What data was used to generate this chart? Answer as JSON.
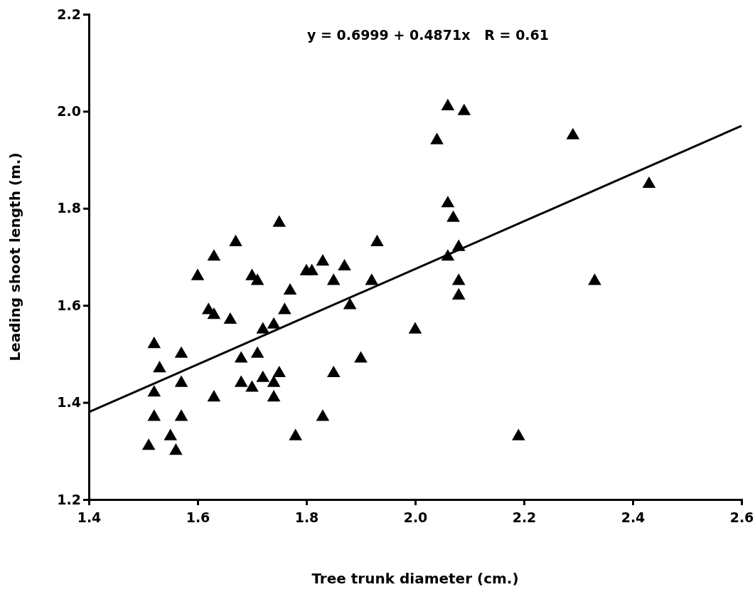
{
  "chart_data": {
    "type": "scatter",
    "xlabel": "Tree trunk diameter (cm.)",
    "ylabel": "Leading shoot length (m.)",
    "annotations": [
      "y = 0.6999 + 0.4871x   R = 0.61"
    ],
    "xlim": [
      1.4,
      2.6
    ],
    "ylim": [
      1.2,
      2.2
    ],
    "xticks": [
      1.4,
      1.6,
      1.8,
      {
        "value": 2,
        "label": "2.0"
      },
      2.2,
      2.4,
      2.6
    ],
    "yticks": [
      1.2,
      1.4,
      1.6,
      1.8,
      {
        "value": 2,
        "label": "2.0"
      },
      2.2
    ],
    "grid": false,
    "series": [
      {
        "marker": "triangle",
        "color": "#000000",
        "x": [
          1.51,
          1.52,
          1.52,
          1.52,
          1.53,
          1.55,
          1.56,
          1.57,
          1.57,
          1.57,
          1.6,
          1.62,
          1.63,
          1.63,
          1.63,
          1.66,
          1.67,
          1.68,
          1.68,
          1.7,
          1.7,
          1.71,
          1.71,
          1.72,
          1.72,
          1.74,
          1.74,
          1.74,
          1.75,
          1.75,
          1.76,
          1.77,
          1.78,
          1.8,
          1.81,
          1.83,
          1.83,
          1.85,
          1.85,
          1.87,
          1.88,
          1.9,
          1.92,
          1.93,
          2.0,
          2.04,
          2.06,
          2.09,
          2.06,
          2.07,
          2.06,
          2.08,
          2.08,
          2.08,
          2.19,
          2.29,
          2.43,
          2.33
        ],
        "values": [
          1.31,
          1.52,
          1.42,
          1.37,
          1.47,
          1.33,
          1.3,
          1.5,
          1.44,
          1.37,
          1.66,
          1.59,
          1.58,
          1.7,
          1.41,
          1.57,
          1.73,
          1.49,
          1.44,
          1.43,
          1.66,
          1.65,
          1.5,
          1.55,
          1.45,
          1.56,
          1.44,
          1.41,
          1.46,
          1.77,
          1.59,
          1.63,
          1.33,
          1.67,
          1.67,
          1.69,
          1.37,
          1.65,
          1.46,
          1.68,
          1.6,
          1.49,
          1.65,
          1.73,
          1.55,
          1.94,
          2.01,
          2.0,
          1.81,
          1.78,
          1.7,
          1.72,
          1.65,
          1.62,
          1.33,
          1.95,
          1.85,
          1.65
        ]
      },
      {
        "type": "line",
        "color": "#000000",
        "x": [
          1.4,
          2.6
        ],
        "values": [
          1.38,
          1.97
        ]
      }
    ]
  }
}
